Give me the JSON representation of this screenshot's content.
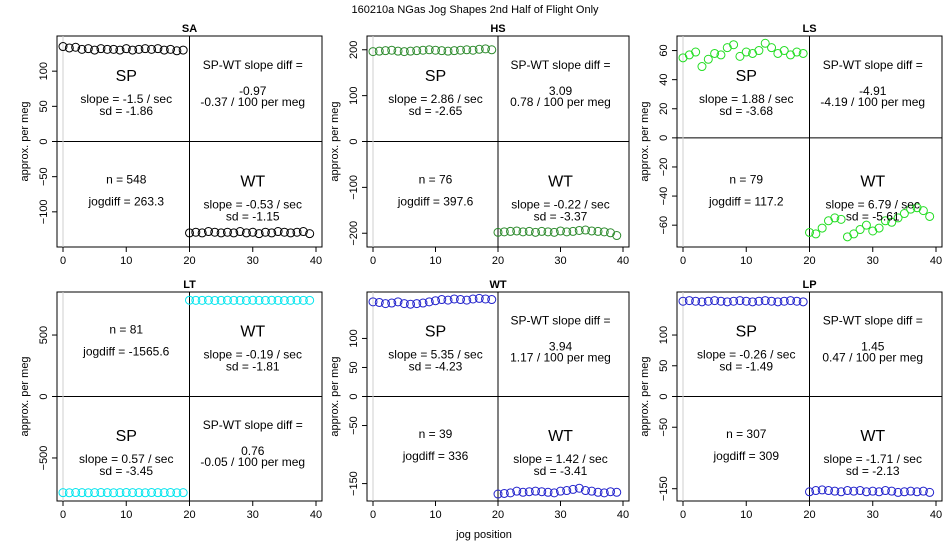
{
  "figure": {
    "title": "160210a    NGas Jog Shapes 2nd Half of Flight Only",
    "xlabel": "jog position",
    "ylabel": "approx. per meg"
  },
  "chart_data": [
    {
      "type": "scatter",
      "title": "SA",
      "xlim": [
        0,
        40
      ],
      "ylim": [
        -150,
        150
      ],
      "xticks": [
        0,
        10,
        20,
        30,
        40
      ],
      "yticks": [
        -100,
        -50,
        0,
        50,
        100
      ],
      "color": "#000000",
      "left_vals": [
        135,
        133,
        134,
        131,
        132,
        130,
        132,
        131,
        131,
        130,
        132,
        130,
        131,
        132,
        131,
        132,
        130,
        131,
        129,
        130
      ],
      "right_vals": [
        -130,
        -129,
        -130,
        -128,
        -129,
        -130,
        -129,
        -130,
        -128,
        -130,
        -129,
        -131,
        -129,
        -130,
        -128,
        -129,
        -130,
        -129,
        -128,
        -131
      ],
      "ann_top_left": {
        "label": "SP",
        "slope": "slope = -1.5 / sec",
        "sd": "sd = -1.86"
      },
      "ann_top_right": {
        "label": "SP-WT slope diff =",
        "v1": "-0.97",
        "v2": "-0.37 / 100 per meg"
      },
      "ann_bot_left": {
        "n": "n = 548",
        "jog": "jogdiff = 263.3"
      },
      "ann_bot_right": {
        "label": "WT",
        "slope": "slope = -0.53 / sec",
        "sd": "sd = -1.15"
      }
    },
    {
      "type": "scatter",
      "title": "HS",
      "xlim": [
        0,
        40
      ],
      "ylim": [
        -230,
        230
      ],
      "xticks": [
        0,
        10,
        20,
        30,
        40
      ],
      "yticks": [
        -200,
        -100,
        0,
        100,
        200
      ],
      "color": "#2e8b2e",
      "left_vals": [
        196,
        197,
        198,
        199,
        197,
        196,
        197,
        198,
        199,
        200,
        199,
        198,
        197,
        198,
        199,
        200,
        199,
        201,
        202,
        200
      ],
      "right_vals": [
        -198,
        -197,
        -196,
        -195,
        -197,
        -196,
        -198,
        -196,
        -197,
        -198,
        -195,
        -197,
        -196,
        -194,
        -193,
        -195,
        -196,
        -197,
        -199,
        -205
      ],
      "ann_top_left": {
        "label": "SP",
        "slope": "slope = 2.86 / sec",
        "sd": "sd = -2.65"
      },
      "ann_top_right": {
        "label": "SP-WT slope diff =",
        "v1": "3.09",
        "v2": "0.78 / 100 per meg"
      },
      "ann_bot_left": {
        "n": "n = 76",
        "jog": "jogdiff = 397.6"
      },
      "ann_bot_right": {
        "label": "WT",
        "slope": "slope = -0.22 / sec",
        "sd": "sd = -3.37"
      }
    },
    {
      "type": "scatter",
      "title": "LS",
      "xlim": [
        0,
        40
      ],
      "ylim": [
        -75,
        70
      ],
      "xticks": [
        0,
        10,
        20,
        30,
        40
      ],
      "yticks": [
        -60,
        -40,
        -20,
        0,
        20,
        40,
        60
      ],
      "color": "#22dd22",
      "left_vals": [
        55,
        57,
        59,
        49,
        54,
        58,
        57,
        62,
        64,
        56,
        59,
        58,
        60,
        65,
        62,
        58,
        60,
        57,
        59,
        58
      ],
      "right_vals": [
        -65,
        -66,
        -62,
        -57,
        -55,
        -56,
        -68,
        -66,
        -63,
        -60,
        -64,
        -62,
        -57,
        -58,
        -55,
        -52,
        -49,
        -48,
        -50,
        -54
      ],
      "ann_top_left": {
        "label": "SP",
        "slope": "slope = 1.88 / sec",
        "sd": "sd = -3.68"
      },
      "ann_top_right": {
        "label": "SP-WT slope diff =",
        "v1": "-4.91",
        "v2": "-4.19 / 100 per meg"
      },
      "ann_bot_left": {
        "n": "n = 79",
        "jog": "jogdiff = 117.2"
      },
      "ann_bot_right": {
        "label": "WT",
        "slope": "slope = 6.79 / sec",
        "sd": "sd = -5.61"
      }
    },
    {
      "type": "scatter",
      "title": "LT",
      "xlim": [
        0,
        40
      ],
      "ylim": [
        -850,
        850
      ],
      "xticks": [
        0,
        10,
        20,
        30,
        40
      ],
      "yticks": [
        -500,
        0,
        500
      ],
      "color": "#00e5ee",
      "left_vals": [
        -782,
        -783,
        -781,
        -782,
        -783,
        -782,
        -781,
        -782,
        -783,
        -782,
        -781,
        -782,
        -782,
        -783,
        -781,
        -782,
        -782,
        -781,
        -783,
        -782
      ],
      "right_vals": [
        783,
        782,
        782,
        783,
        781,
        782,
        783,
        782,
        782,
        781,
        783,
        782,
        782,
        783,
        782,
        781,
        782,
        783,
        782,
        782
      ],
      "ann_top_left": {
        "n": "n = 81",
        "jog": "jogdiff = -1565.6"
      },
      "ann_top_right": {
        "label": "WT",
        "slope": "slope = -0.19 / sec",
        "sd": "sd = -1.81"
      },
      "ann_bot_left": {
        "label": "SP",
        "slope": "slope = 0.57 / sec",
        "sd": "sd = -3.45"
      },
      "ann_bot_right": {
        "label": "SP-WT slope diff =",
        "v1": "0.76",
        "v2": "-0.05 / 100 per meg"
      }
    },
    {
      "type": "scatter",
      "title": "WT",
      "xlim": [
        0,
        40
      ],
      "ylim": [
        -180,
        180
      ],
      "xticks": [
        0,
        10,
        20,
        30,
        40
      ],
      "yticks": [
        -150,
        -50,
        0,
        50,
        100
      ],
      "color": "#2222cc",
      "left_vals": [
        163,
        162,
        160,
        161,
        163,
        160,
        159,
        160,
        161,
        163,
        165,
        167,
        166,
        168,
        167,
        166,
        168,
        169,
        168,
        167
      ],
      "right_vals": [
        -168,
        -167,
        -166,
        -163,
        -165,
        -164,
        -163,
        -164,
        -165,
        -166,
        -163,
        -162,
        -160,
        -158,
        -162,
        -163,
        -165,
        -166,
        -164,
        -165
      ],
      "ann_top_left": {
        "label": "SP",
        "slope": "slope = 5.35 / sec",
        "sd": "sd = -4.23"
      },
      "ann_top_right": {
        "label": "SP-WT slope diff =",
        "v1": "3.94",
        "v2": "1.17 / 100 per meg"
      },
      "ann_bot_left": {
        "n": "n = 39",
        "jog": "jogdiff = 336"
      },
      "ann_bot_right": {
        "label": "WT",
        "slope": "slope = 1.42 / sec",
        "sd": "sd = -3.41"
      }
    },
    {
      "type": "scatter",
      "title": "LP",
      "xlim": [
        0,
        40
      ],
      "ylim": [
        -170,
        170
      ],
      "xticks": [
        0,
        10,
        20,
        30,
        40
      ],
      "yticks": [
        -150,
        -50,
        0,
        50,
        100
      ],
      "color": "#2222cc",
      "left_vals": [
        155,
        156,
        155,
        154,
        155,
        156,
        155,
        154,
        155,
        156,
        155,
        154,
        155,
        156,
        155,
        154,
        155,
        156,
        155,
        154
      ],
      "right_vals": [
        -155,
        -153,
        -152,
        -153,
        -154,
        -155,
        -153,
        -154,
        -153,
        -155,
        -154,
        -155,
        -153,
        -154,
        -156,
        -155,
        -154,
        -155,
        -154,
        -156
      ],
      "ann_top_left": {
        "label": "SP",
        "slope": "slope = -0.26 / sec",
        "sd": "sd = -1.49"
      },
      "ann_top_right": {
        "label": "SP-WT slope diff =",
        "v1": "1.45",
        "v2": "0.47 / 100 per meg"
      },
      "ann_bot_left": {
        "n": "n = 307",
        "jog": "jogdiff = 309"
      },
      "ann_bot_right": {
        "label": "WT",
        "slope": "slope = -1.71 / sec",
        "sd": "sd = -2.13"
      }
    }
  ]
}
